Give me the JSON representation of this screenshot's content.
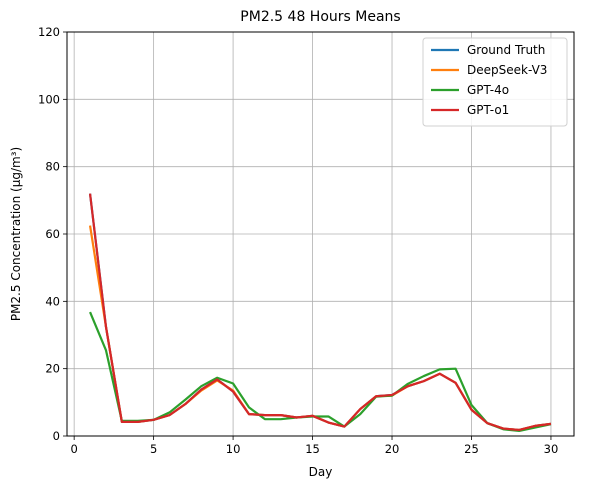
{
  "chart_data": {
    "type": "line",
    "title": "PM2.5 48 Hours Means",
    "xlabel": "Day",
    "ylabel": "PM2.5 Concentration (µg/m³)",
    "xlim": [
      -0.45,
      31.45
    ],
    "ylim": [
      0,
      120
    ],
    "xticks": [
      0,
      5,
      10,
      15,
      20,
      25,
      30
    ],
    "yticks": [
      0,
      20,
      40,
      60,
      80,
      100,
      120
    ],
    "grid": true,
    "legend_position": "top-right",
    "x": [
      1,
      2,
      3,
      4,
      5,
      6,
      7,
      8,
      9,
      10,
      11,
      12,
      13,
      14,
      15,
      16,
      17,
      18,
      19,
      20,
      21,
      22,
      23,
      24,
      25,
      26,
      27,
      28,
      29,
      30
    ],
    "series": [
      {
        "name": "Ground Truth",
        "color": "#1f77b4",
        "values": [
          72.0,
          32.5,
          4.2,
          4.2,
          4.8,
          6.2,
          9.5,
          13.8,
          16.8,
          13.2,
          6.5,
          6.2,
          6.2,
          5.5,
          6.0,
          4.0,
          2.8,
          8.0,
          11.8,
          12.2,
          14.8,
          16.3,
          18.5,
          15.8,
          7.8,
          3.8,
          2.2,
          1.8,
          3.0,
          3.6
        ]
      },
      {
        "name": "DeepSeek-V3",
        "color": "#ff7f0e",
        "values": [
          62.5,
          32.5,
          4.2,
          4.2,
          4.8,
          6.2,
          9.5,
          13.5,
          16.5,
          13.5,
          6.5,
          6.2,
          6.2,
          5.5,
          6.0,
          4.0,
          2.8,
          8.0,
          11.8,
          12.0,
          14.8,
          16.3,
          18.5,
          15.8,
          7.8,
          3.8,
          2.2,
          1.8,
          3.0,
          3.6
        ]
      },
      {
        "name": "GPT-4o",
        "color": "#2ca02c",
        "values": [
          36.8,
          25.5,
          4.5,
          4.5,
          4.8,
          7.0,
          10.8,
          14.8,
          17.3,
          15.6,
          8.5,
          5.0,
          5.0,
          5.5,
          5.8,
          5.8,
          2.8,
          6.5,
          11.7,
          12.0,
          15.5,
          17.8,
          19.8,
          20.0,
          9.2,
          3.8,
          2.0,
          1.5,
          2.5,
          3.5
        ]
      },
      {
        "name": "GPT-o1",
        "color": "#d62728",
        "values": [
          72.0,
          32.5,
          4.2,
          4.2,
          4.8,
          6.2,
          9.5,
          13.8,
          16.8,
          13.2,
          6.5,
          6.2,
          6.2,
          5.5,
          6.0,
          4.0,
          2.8,
          8.0,
          11.8,
          12.2,
          14.8,
          16.3,
          18.5,
          15.8,
          7.8,
          3.8,
          2.2,
          1.8,
          3.0,
          3.6
        ]
      }
    ]
  }
}
